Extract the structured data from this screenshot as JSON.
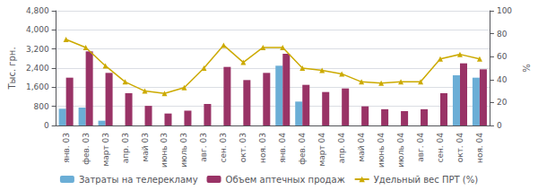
{
  "chart_data": {
    "type": "bar",
    "categories": [
      "янв. 03",
      "фев. 03",
      "март 03",
      "апр. 03",
      "май 03",
      "июнь 03",
      "июль 03",
      "авг. 03",
      "сен. 03",
      "окт. 03",
      "ноя. 03",
      "янв. 04",
      "фев. 04",
      "март 04",
      "апр. 04",
      "май 04",
      "июнь 04",
      "июль 04",
      "авг. 04",
      "сен. 04",
      "окт. 04",
      "ноя. 04"
    ],
    "series": [
      {
        "name": "Затраты на телерекламу",
        "color": "#6baed6",
        "values": [
          700,
          750,
          200,
          0,
          0,
          0,
          0,
          0,
          0,
          0,
          0,
          2500,
          1000,
          0,
          0,
          0,
          0,
          0,
          0,
          0,
          2100,
          2000
        ]
      },
      {
        "name": "Объем аптечных продаж",
        "color": "#993366",
        "values": [
          2000,
          3100,
          2200,
          1350,
          820,
          500,
          620,
          900,
          2450,
          1900,
          2200,
          3000,
          1700,
          1400,
          1550,
          800,
          680,
          600,
          680,
          1350,
          2600,
          2350
        ]
      },
      {
        "name": "Удельный вес ПРТ (%)",
        "type": "line",
        "color": "#ccaa00",
        "marker": "triangle",
        "axis": "y2",
        "values": [
          75,
          68,
          52,
          38,
          30,
          28,
          33,
          50,
          70,
          55,
          68,
          68,
          50,
          48,
          45,
          38,
          37,
          38,
          38,
          58,
          62,
          58
        ]
      }
    ],
    "ylabel": "Тыс. грн.",
    "y2label": "%",
    "ylim": [
      0,
      4800
    ],
    "yticks": [
      0,
      800,
      1600,
      2400,
      3200,
      4000,
      4800
    ],
    "y2lim": [
      0,
      100
    ],
    "y2ticks": [
      0,
      20,
      40,
      60,
      80,
      100
    ],
    "grid": true,
    "legend": "bottom"
  }
}
